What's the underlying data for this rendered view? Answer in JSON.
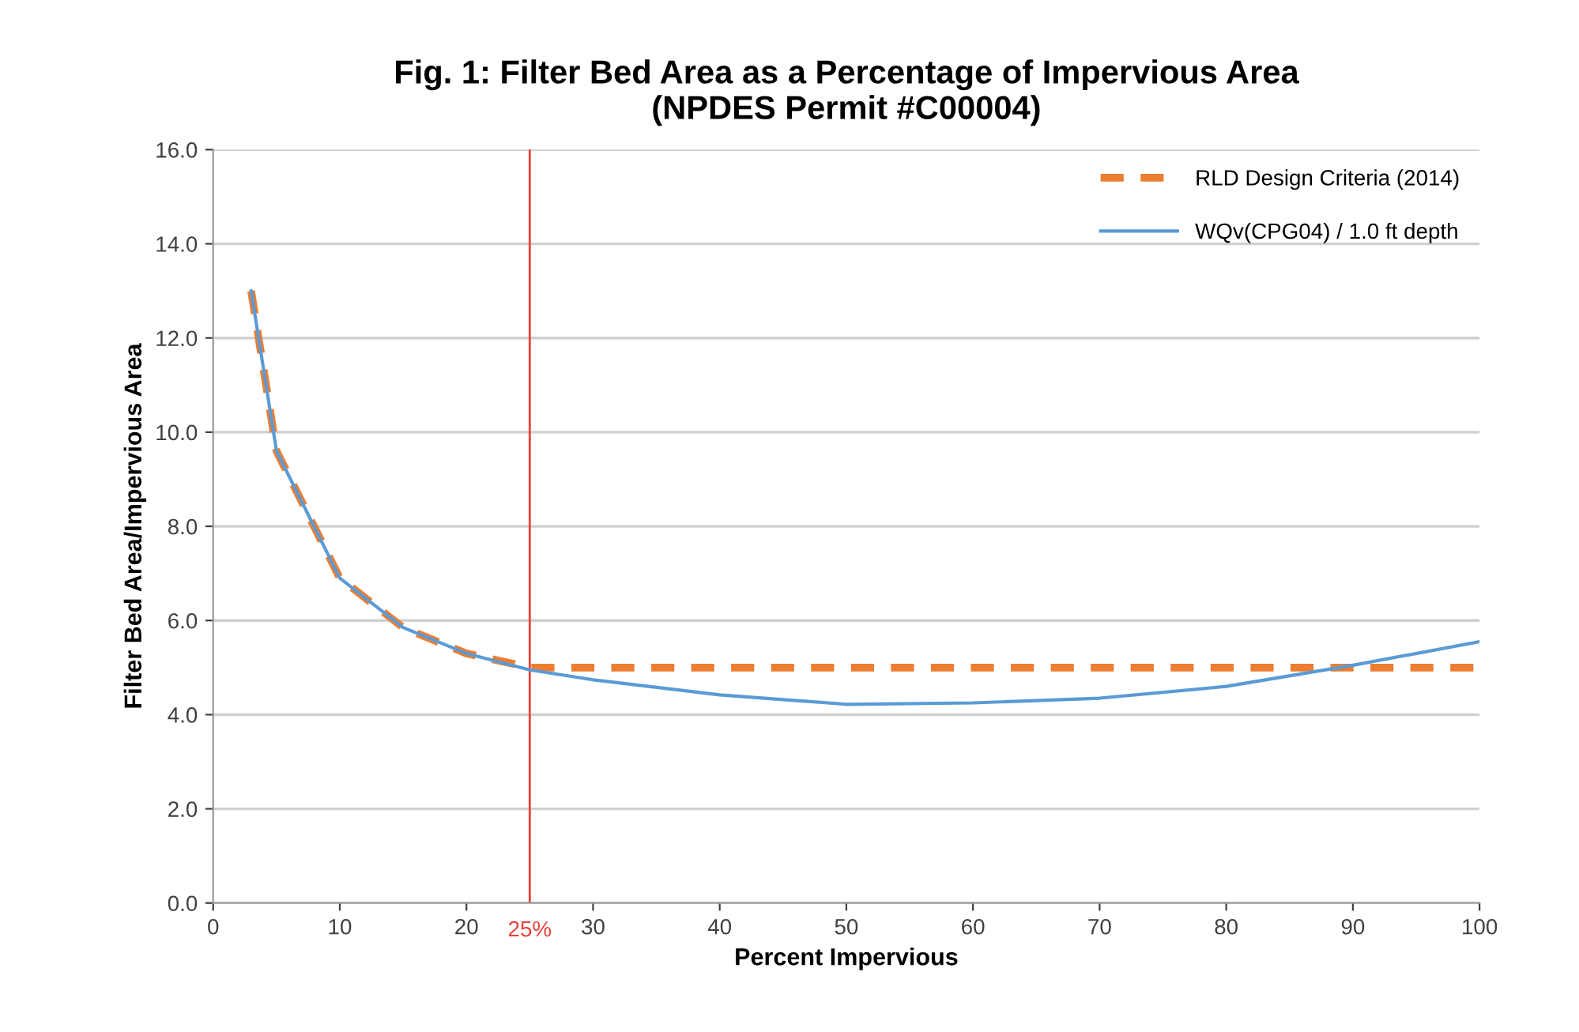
{
  "chart_data": {
    "type": "line",
    "title": "Fig. 1: Filter Bed Area as a Percentage of Impervious Area\n(NPDES Permit #C00004)",
    "xlabel": "Percent Impervious",
    "ylabel": "Filter Bed Area/Impervious Area",
    "xlim": [
      0,
      100
    ],
    "xticks": [
      0,
      10,
      20,
      30,
      40,
      50,
      60,
      70,
      80,
      90,
      100
    ],
    "ylim": [
      0,
      16
    ],
    "yticks": [
      {
        "value": 0,
        "label": "0.0"
      },
      {
        "value": 2,
        "label": "2.0"
      },
      {
        "value": 4,
        "label": "4.0"
      },
      {
        "value": 6,
        "label": "6.0"
      },
      {
        "value": 8,
        "label": "8.0"
      },
      {
        "value": 10,
        "label": "10.0"
      },
      {
        "value": 12,
        "label": "12.0"
      },
      {
        "value": 14,
        "label": "14.0"
      },
      {
        "value": 16,
        "label": "16.0"
      }
    ],
    "grid": "y",
    "legend": "top right",
    "marker": "none",
    "ref_lines": [
      {
        "axis": "x",
        "value": 25,
        "label": "25%",
        "color": "#e8413a"
      }
    ],
    "series": [
      {
        "name": "RLD Design Criteria (2014)",
        "color": "#ed7d31",
        "line_style": "dashed",
        "x": [
          3,
          5,
          10,
          15,
          20,
          25,
          100
        ],
        "values": [
          13.0,
          9.6,
          6.9,
          5.85,
          5.3,
          5.0,
          5.0
        ]
      },
      {
        "name": "WQv(CPG04) / 1.0 ft depth",
        "color": "#5b9bd5",
        "line_style": "solid",
        "x": [
          3,
          5,
          10,
          15,
          20,
          25,
          30,
          40,
          50,
          60,
          70,
          80,
          90,
          100
        ],
        "values": [
          13.0,
          9.6,
          6.9,
          5.85,
          5.3,
          4.95,
          4.74,
          4.42,
          4.22,
          4.25,
          4.35,
          4.6,
          5.05,
          5.55
        ]
      }
    ]
  }
}
